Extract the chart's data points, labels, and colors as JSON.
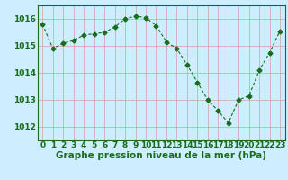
{
  "x": [
    0,
    1,
    2,
    3,
    4,
    5,
    6,
    7,
    8,
    9,
    10,
    11,
    12,
    13,
    14,
    15,
    16,
    17,
    18,
    19,
    20,
    21,
    22,
    23
  ],
  "y": [
    1015.8,
    1014.9,
    1015.1,
    1015.2,
    1015.4,
    1015.45,
    1015.5,
    1015.7,
    1016.0,
    1016.1,
    1016.05,
    1015.75,
    1015.15,
    1014.9,
    1014.3,
    1013.65,
    1013.0,
    1012.6,
    1012.15,
    1013.0,
    1013.15,
    1014.1,
    1014.75,
    1015.55
  ],
  "xlabel": "Graphe pression niveau de la mer (hPa)",
  "ylim": [
    1011.5,
    1016.5
  ],
  "yticks": [
    1012,
    1013,
    1014,
    1015,
    1016
  ],
  "xticks": [
    0,
    1,
    2,
    3,
    4,
    5,
    6,
    7,
    8,
    9,
    10,
    11,
    12,
    13,
    14,
    15,
    16,
    17,
    18,
    19,
    20,
    21,
    22,
    23
  ],
  "line_color": "#1a6b1a",
  "marker": "D",
  "marker_size": 2.5,
  "bg_color": "#cceeff",
  "grid_color": "#d4a0a0",
  "label_color": "#1a6b1a",
  "xlabel_fontsize": 7.5,
  "tick_fontsize": 6.5
}
